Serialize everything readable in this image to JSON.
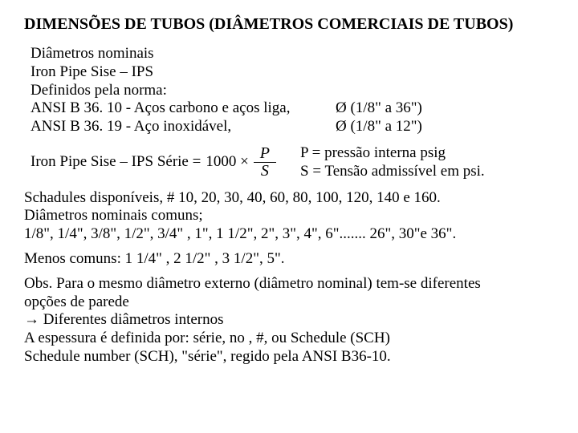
{
  "colors": {
    "bg": "#ffffff",
    "fg": "#000000"
  },
  "title": "DIMENSÕES DE TUBOS  (DIÂMETROS COMERCIAIS DE TUBOS)",
  "intro": {
    "line1": "Diâmetros nominais",
    "line2": " Iron Pipe Sise – IPS",
    "line3": "Definidos pela norma:",
    "ansi1_left": "ANSI B 36. 10  -  Aços carbono  e  aços liga,",
    "ansi1_right": "Ø  (1/8\" a 36\")",
    "ansi2_left": "ANSI B 36. 19  -  Aço inoxidável,",
    "ansi2_right": "Ø (1/8\" a 12\")"
  },
  "formula": {
    "label": "Iron Pipe Sise – IPS   Série =",
    "constant": "1000 ×",
    "numer": "P",
    "denom": "S",
    "def1": "P = pressão interna psig",
    "def2": "S = Tensão admissível  em psi."
  },
  "schedules": {
    "line1": "Schadules disponíveis,  # 10, 20, 30, 40, 60, 80, 100, 120, 140 e 160.",
    "line2": "Diâmetros nominais comuns;",
    "line3": "1/8\", 1/4\", 3/8\", 1/2\", 3/4\" , 1\", 1 1/2\", 2\", 3\", 4\", 6\"....... 26\", 30\"e 36\"."
  },
  "less_common": "Menos comuns: 1 1/4\" , 2 1/2\" , 3 1/2\", 5\".",
  "obs": {
    "line1": "Obs. Para o mesmo diâmetro externo (diâmetro nominal) tem-se diferentes",
    "line2": "opções de parede",
    "line3_arrow": "→",
    "line3_text": " Diferentes diâmetros internos",
    "line4": "A espessura é definida por:  série, no , #, ou Schedule (SCH)",
    "line5": "Schedule number (SCH), \"série\", regido pela ANSI B36-10."
  }
}
